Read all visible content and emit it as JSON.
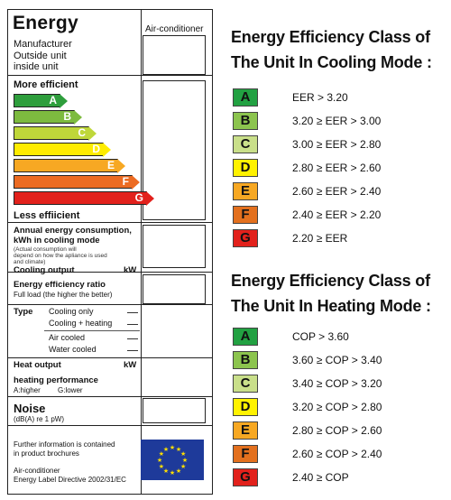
{
  "label": {
    "title": "Energy",
    "column_header": "Air-conditioner",
    "manufacturer_lines": [
      "Manufacturer",
      "Outside unit",
      "inside unit"
    ],
    "more_efficient": "More efficient",
    "less_efficient": "Less effiicient",
    "arrows": [
      {
        "letter": "A",
        "color": "#2e9e3c"
      },
      {
        "letter": "B",
        "color": "#7dbb3f"
      },
      {
        "letter": "C",
        "color": "#bfd73a"
      },
      {
        "letter": "D",
        "color": "#ffec00"
      },
      {
        "letter": "E",
        "color": "#f7a823"
      },
      {
        "letter": "F",
        "color": "#ec6b22"
      },
      {
        "letter": "G",
        "color": "#e2211c"
      }
    ],
    "consumption": {
      "title_line1": "Annual energy consumption,",
      "title_line2": "kWh in cooling mode",
      "note_line1": "(Actual consumption will",
      "note_line2": "depend on how the apliance is used",
      "note_line3": "and climate)"
    },
    "cooling_output": {
      "label": "Cooling output",
      "unit": "kW"
    },
    "efficiency_ratio": {
      "label": "Energy efficiency ratio",
      "sub": "Full load (the higher the better)"
    },
    "type": {
      "label": "Type",
      "options": [
        "Cooling only",
        "Cooling + heating",
        "Air cooled",
        "Water cooled"
      ]
    },
    "heat_output": {
      "label": "Heat output",
      "unit": "kW"
    },
    "heating_performance": {
      "label": "heating performance",
      "sub_a": "A:higher",
      "sub_g": "G:lower"
    },
    "noise": {
      "label": "Noise",
      "unit": "(dB(A) re 1 pW)"
    },
    "further_info": {
      "line1": "Further information is contained",
      "line2": "in product brochures"
    },
    "footer": {
      "line1": "Air-conditioner",
      "line2": "Energy Label Directive 2002/31/EC"
    }
  },
  "cooling": {
    "heading_line1": "Energy Efficiency Class of",
    "heading_line2": "The Unit In Cooling Mode :",
    "rows": [
      {
        "cls": "A",
        "text": "EER > 3.20"
      },
      {
        "cls": "B",
        "text": "3.20 ≥ EER > 3.00"
      },
      {
        "cls": "C",
        "text": "3.00 ≥ EER > 2.80"
      },
      {
        "cls": "D",
        "text": "2.80 ≥ EER > 2.60"
      },
      {
        "cls": "E",
        "text": "2.60 ≥ EER > 2.40"
      },
      {
        "cls": "F",
        "text": "2.40 ≥ EER > 2.20"
      },
      {
        "cls": "G",
        "text": "2.20 ≥ EER"
      }
    ]
  },
  "heating": {
    "heading_line1": "Energy Efficiency Class of",
    "heading_line2": "The Unit In Heating Mode :",
    "rows": [
      {
        "cls": "A",
        "text": "COP > 3.60"
      },
      {
        "cls": "B",
        "text": "3.60 ≥ COP > 3.40"
      },
      {
        "cls": "C",
        "text": "3.40 ≥ COP > 3.20"
      },
      {
        "cls": "D",
        "text": "3.20 ≥ COP > 2.80"
      },
      {
        "cls": "E",
        "text": "2.80 ≥ COP > 2.60"
      },
      {
        "cls": "F",
        "text": "2.60 ≥ COP > 2.40"
      },
      {
        "cls": "G",
        "text": "2.40 ≥ COP"
      }
    ]
  },
  "class_colors": {
    "A": "#22a142",
    "B": "#8cc44e",
    "C": "#c9df8a",
    "D": "#fff200",
    "E": "#f7a823",
    "F": "#e3701e",
    "G": "#e2211c"
  },
  "eu_flag": {
    "background": "#1e3a9a",
    "star_color": "#ffde00"
  }
}
